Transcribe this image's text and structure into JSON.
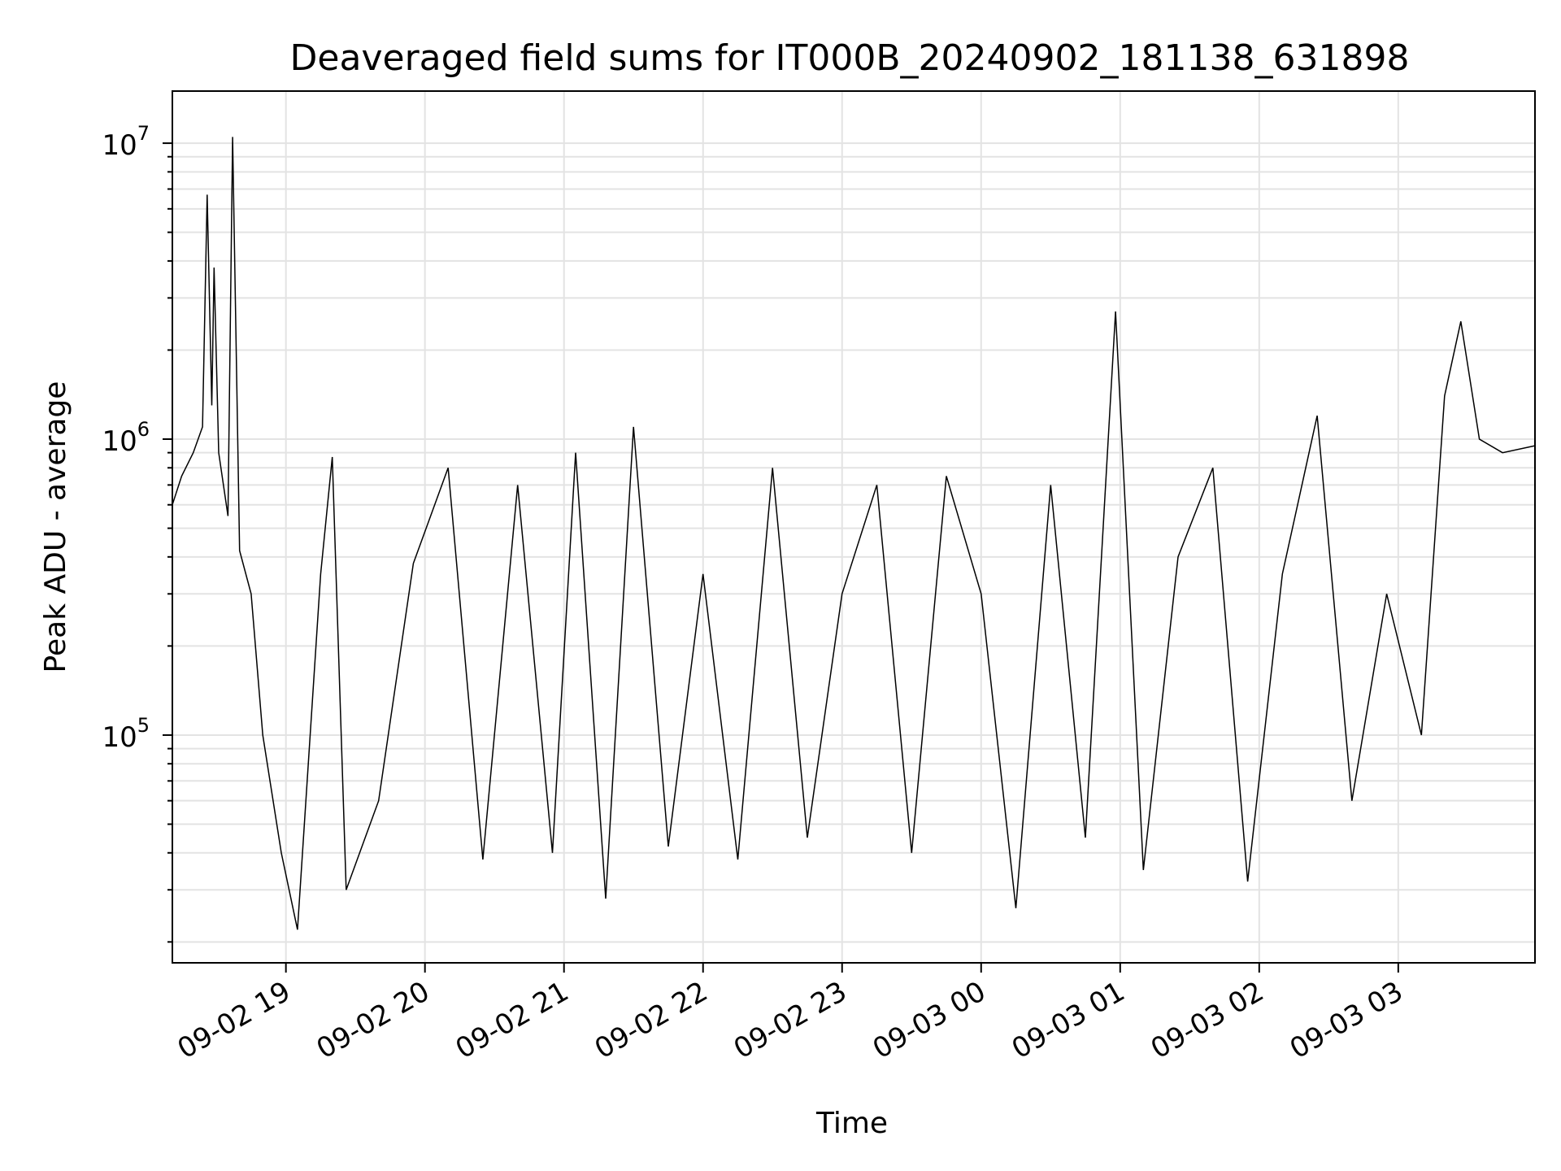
{
  "chart_data": {
    "type": "line",
    "title": "Deaveraged field sums for IT000B_20240902_181138_631898",
    "xlabel": "Time",
    "ylabel": "Peak ADU - average",
    "yscale": "log",
    "xlim": [
      "2024-09-02 18:11",
      "2024-09-03 03:59"
    ],
    "ylim": [
      17000,
      15000000
    ],
    "grid": true,
    "line_color": "#000000",
    "x_ticks": [
      {
        "label": "09-02 19",
        "time": "2024-09-02 19:00"
      },
      {
        "label": "09-02 20",
        "time": "2024-09-02 20:00"
      },
      {
        "label": "09-02 21",
        "time": "2024-09-02 21:00"
      },
      {
        "label": "09-02 22",
        "time": "2024-09-02 22:00"
      },
      {
        "label": "09-02 23",
        "time": "2024-09-02 23:00"
      },
      {
        "label": "09-03 00",
        "time": "2024-09-03 00:00"
      },
      {
        "label": "09-03 01",
        "time": "2024-09-03 01:00"
      },
      {
        "label": "09-03 02",
        "time": "2024-09-03 02:00"
      },
      {
        "label": "09-03 03",
        "time": "2024-09-03 03:00"
      }
    ],
    "y_ticks": [
      {
        "base": "10",
        "exp": "5",
        "value": 100000
      },
      {
        "base": "10",
        "exp": "6",
        "value": 1000000
      },
      {
        "base": "10",
        "exp": "7",
        "value": 10000000
      }
    ],
    "series": [
      {
        "points": [
          [
            "2024-09-02 18:11",
            600000
          ],
          [
            "2024-09-02 18:15",
            750000
          ],
          [
            "2024-09-02 18:20",
            900000
          ],
          [
            "2024-09-02 18:24",
            1100000
          ],
          [
            "2024-09-02 18:26",
            6700000
          ],
          [
            "2024-09-02 18:28",
            1300000
          ],
          [
            "2024-09-02 18:29",
            3800000
          ],
          [
            "2024-09-02 18:31",
            900000
          ],
          [
            "2024-09-02 18:35",
            550000
          ],
          [
            "2024-09-02 18:37",
            10500000
          ],
          [
            "2024-09-02 18:40",
            420000
          ],
          [
            "2024-09-02 18:45",
            300000
          ],
          [
            "2024-09-02 18:50",
            100000
          ],
          [
            "2024-09-02 18:58",
            40000
          ],
          [
            "2024-09-02 19:05",
            22000
          ],
          [
            "2024-09-02 19:15",
            350000
          ],
          [
            "2024-09-02 19:20",
            870000
          ],
          [
            "2024-09-02 19:26",
            30000
          ],
          [
            "2024-09-02 19:40",
            60000
          ],
          [
            "2024-09-02 19:55",
            380000
          ],
          [
            "2024-09-02 20:10",
            800000
          ],
          [
            "2024-09-02 20:25",
            38000
          ],
          [
            "2024-09-02 20:40",
            700000
          ],
          [
            "2024-09-02 20:55",
            40000
          ],
          [
            "2024-09-02 21:05",
            900000
          ],
          [
            "2024-09-02 21:18",
            28000
          ],
          [
            "2024-09-02 21:30",
            1100000
          ],
          [
            "2024-09-02 21:45",
            42000
          ],
          [
            "2024-09-02 22:00",
            350000
          ],
          [
            "2024-09-02 22:15",
            38000
          ],
          [
            "2024-09-02 22:30",
            800000
          ],
          [
            "2024-09-02 22:45",
            45000
          ],
          [
            "2024-09-02 23:00",
            300000
          ],
          [
            "2024-09-02 23:15",
            700000
          ],
          [
            "2024-09-02 23:30",
            40000
          ],
          [
            "2024-09-02 23:45",
            750000
          ],
          [
            "2024-09-03 00:00",
            300000
          ],
          [
            "2024-09-03 00:15",
            26000
          ],
          [
            "2024-09-03 00:30",
            700000
          ],
          [
            "2024-09-03 00:45",
            45000
          ],
          [
            "2024-09-03 00:58",
            2700000
          ],
          [
            "2024-09-03 01:10",
            35000
          ],
          [
            "2024-09-03 01:25",
            400000
          ],
          [
            "2024-09-03 01:40",
            800000
          ],
          [
            "2024-09-03 01:55",
            32000
          ],
          [
            "2024-09-03 02:10",
            350000
          ],
          [
            "2024-09-03 02:25",
            1200000
          ],
          [
            "2024-09-03 02:40",
            60000
          ],
          [
            "2024-09-03 02:55",
            300000
          ],
          [
            "2024-09-03 03:10",
            100000
          ],
          [
            "2024-09-03 03:20",
            1400000
          ],
          [
            "2024-09-03 03:27",
            2500000
          ],
          [
            "2024-09-03 03:35",
            1000000
          ],
          [
            "2024-09-03 03:45",
            900000
          ],
          [
            "2024-09-03 03:59",
            950000
          ]
        ]
      }
    ]
  }
}
